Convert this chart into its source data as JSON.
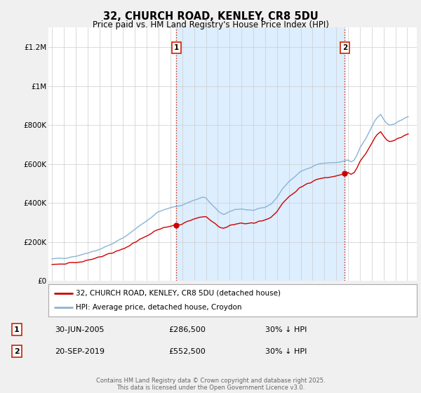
{
  "title": "32, CHURCH ROAD, KENLEY, CR8 5DU",
  "subtitle": "Price paid vs. HM Land Registry's House Price Index (HPI)",
  "footer": "Contains HM Land Registry data © Crown copyright and database right 2025.\nThis data is licensed under the Open Government Licence v3.0.",
  "legend_line1": "32, CHURCH ROAD, KENLEY, CR8 5DU (detached house)",
  "legend_line2": "HPI: Average price, detached house, Croydon",
  "purchase1_date": "30-JUN-2005",
  "purchase1_price": 286500,
  "purchase1_label": "£286,500",
  "purchase1_hpi": "30% ↓ HPI",
  "purchase2_date": "20-SEP-2019",
  "purchase2_price": 552500,
  "purchase2_label": "£552,500",
  "purchase2_hpi": "30% ↓ HPI",
  "purchase1_year": 2005.5,
  "purchase2_year": 2019.72,
  "hpi_color": "#8ab4d4",
  "price_color": "#cc0000",
  "vline_color": "#cc2200",
  "fill_color": "#ddeeff",
  "background_color": "#f0f0f0",
  "plot_bg_color": "#ffffff",
  "ylim": [
    0,
    1300000
  ],
  "xlim_start": 1994.7,
  "xlim_end": 2025.8,
  "yticks": [
    0,
    200000,
    400000,
    600000,
    800000,
    1000000,
    1200000
  ],
  "ytick_labels": [
    "£0",
    "£200K",
    "£400K",
    "£600K",
    "£800K",
    "£1M",
    "£1.2M"
  ],
  "xticks": [
    1995,
    1996,
    1997,
    1998,
    1999,
    2000,
    2001,
    2002,
    2003,
    2004,
    2005,
    2006,
    2007,
    2008,
    2009,
    2010,
    2011,
    2012,
    2013,
    2014,
    2015,
    2016,
    2017,
    2018,
    2019,
    2020,
    2021,
    2022,
    2023,
    2024,
    2025
  ]
}
